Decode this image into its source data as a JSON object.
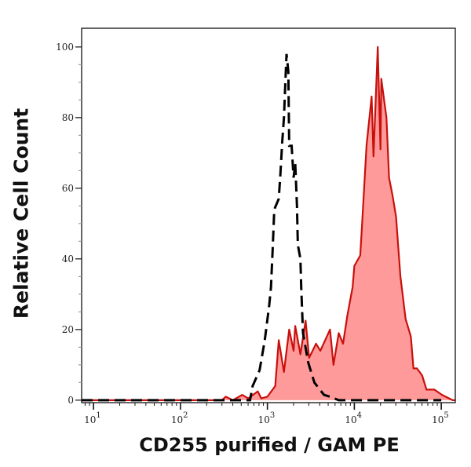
{
  "chart_data": {
    "type": "area",
    "title": "",
    "xlabel": "CD255 purified / GAM PE",
    "ylabel": "Relative Cell Count",
    "x_scale": "log",
    "xlim": [
      7.3,
      145000
    ],
    "ylim": [
      -0.7,
      105.3
    ],
    "x_ticks": [
      {
        "value": 10,
        "base": "10",
        "exp": "1"
      },
      {
        "value": 100,
        "base": "10",
        "exp": "2"
      },
      {
        "value": 1000,
        "base": "10",
        "exp": "3"
      },
      {
        "value": 10000,
        "base": "10",
        "exp": "4"
      },
      {
        "value": 100000,
        "base": "10",
        "exp": "5"
      }
    ],
    "y_ticks": [
      0,
      20,
      40,
      60,
      80,
      100
    ],
    "grid": false,
    "series": [
      {
        "style": "filled",
        "fill_color": "#ff9a9a",
        "line_color": "#c8100c",
        "x": [
          7.3,
          300,
          331,
          400,
          513,
          600,
          776,
          850,
          1000,
          1230,
          1350,
          1550,
          1780,
          2000,
          2090,
          2400,
          2750,
          3020,
          3630,
          4070,
          5250,
          5750,
          6610,
          7410,
          8320,
          9550,
          10000,
          11700,
          12300,
          13800,
          15800,
          16600,
          18600,
          20000,
          20400,
          23400,
          25100,
          27500,
          30200,
          33900,
          38900,
          44700,
          47900,
          52500,
          60300,
          67600,
          83200,
          102000,
          135000,
          145000
        ],
        "y": [
          0,
          0,
          1,
          0,
          1.5,
          0.5,
          2.5,
          0.5,
          1,
          4,
          17,
          8,
          20,
          14,
          21,
          13,
          22.5,
          12,
          16,
          14,
          20,
          10,
          19,
          16,
          24,
          32,
          38,
          41,
          50,
          72,
          86,
          69,
          100,
          71,
          91,
          80,
          63,
          58,
          52,
          35,
          23,
          18,
          9,
          9,
          7,
          3,
          3,
          1.5,
          0,
          0
        ]
      },
      {
        "style": "dashed",
        "line_color": "#000000",
        "x": [
          7.3,
          631,
          676,
          813,
          933,
          1050,
          1100,
          1150,
          1200,
          1350,
          1410,
          1480,
          1550,
          1660,
          1740,
          1780,
          1900,
          2000,
          2090,
          2190,
          2240,
          2400,
          2450,
          2570,
          2950,
          3470,
          4470,
          5250,
          6610,
          100000
        ],
        "y": [
          0,
          0,
          4,
          8.5,
          17,
          27,
          32,
          43,
          54,
          57,
          64,
          73,
          80,
          98,
          93,
          72,
          72,
          63,
          67,
          55,
          44,
          40,
          32,
          19,
          10.6,
          5,
          1.5,
          1,
          0,
          0
        ]
      }
    ]
  }
}
